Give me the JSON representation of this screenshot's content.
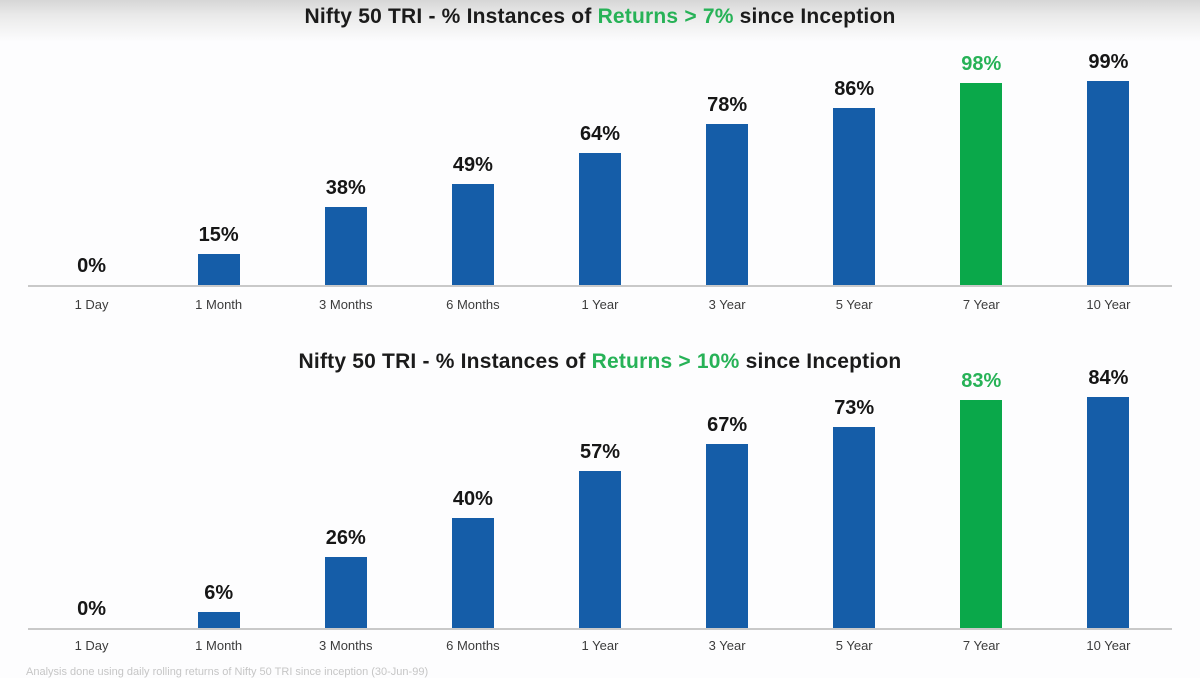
{
  "colors": {
    "bar_blue": "#155da8",
    "bar_green": "#0aa84a",
    "text_green": "#27b257",
    "text_black": "#161616",
    "axis_line": "#c9c9c9",
    "category_text": "#3c3c3c",
    "footnote_text": "#c6c6c6"
  },
  "chart_data": [
    {
      "type": "bar",
      "title": {
        "prefix": "Nifty 50 TRI - % Instances of ",
        "highlight": "Returns > 7%",
        "suffix": " since Inception"
      },
      "categories": [
        "1 Day",
        "1 Month",
        "3 Months",
        "6 Months",
        "1 Year",
        "3 Year",
        "5 Year",
        "7 Year",
        "10 Year"
      ],
      "values": [
        0,
        15,
        38,
        49,
        64,
        78,
        86,
        98,
        99
      ],
      "value_labels": [
        "0%",
        "15%",
        "38%",
        "49%",
        "64%",
        "78%",
        "86%",
        "98%",
        "99%"
      ],
      "highlight_index": 7,
      "ylim": [
        0,
        100
      ],
      "grid": false,
      "legend": "none",
      "points": [
        {
          "category": "1 Day",
          "value": 0,
          "label": "0%",
          "bar_color": "#155da8",
          "label_color": "#161616"
        },
        {
          "category": "1 Month",
          "value": 15,
          "label": "15%",
          "bar_color": "#155da8",
          "label_color": "#161616"
        },
        {
          "category": "3 Months",
          "value": 38,
          "label": "38%",
          "bar_color": "#155da8",
          "label_color": "#161616"
        },
        {
          "category": "6 Months",
          "value": 49,
          "label": "49%",
          "bar_color": "#155da8",
          "label_color": "#161616"
        },
        {
          "category": "1 Year",
          "value": 64,
          "label": "64%",
          "bar_color": "#155da8",
          "label_color": "#161616"
        },
        {
          "category": "3 Year",
          "value": 78,
          "label": "78%",
          "bar_color": "#155da8",
          "label_color": "#161616"
        },
        {
          "category": "5 Year",
          "value": 86,
          "label": "86%",
          "bar_color": "#155da8",
          "label_color": "#161616"
        },
        {
          "category": "7 Year",
          "value": 98,
          "label": "98%",
          "bar_color": "#0aa84a",
          "label_color": "#27b257"
        },
        {
          "category": "10 Year",
          "value": 99,
          "label": "99%",
          "bar_color": "#155da8",
          "label_color": "#161616"
        }
      ]
    },
    {
      "type": "bar",
      "title": {
        "prefix": "Nifty 50 TRI - % Instances of ",
        "highlight": "Returns > 10%",
        "suffix": " since Inception"
      },
      "categories": [
        "1 Day",
        "1 Month",
        "3 Months",
        "6 Months",
        "1 Year",
        "3 Year",
        "5 Year",
        "7 Year",
        "10 Year"
      ],
      "values": [
        0,
        6,
        26,
        40,
        57,
        67,
        73,
        83,
        84
      ],
      "value_labels": [
        "0%",
        "6%",
        "26%",
        "40%",
        "57%",
        "67%",
        "73%",
        "83%",
        "84%"
      ],
      "highlight_index": 7,
      "ylim": [
        0,
        100
      ],
      "grid": false,
      "legend": "none",
      "points": [
        {
          "category": "1 Day",
          "value": 0,
          "label": "0%",
          "bar_color": "#155da8",
          "label_color": "#161616"
        },
        {
          "category": "1 Month",
          "value": 6,
          "label": "6%",
          "bar_color": "#155da8",
          "label_color": "#161616"
        },
        {
          "category": "3 Months",
          "value": 26,
          "label": "26%",
          "bar_color": "#155da8",
          "label_color": "#161616"
        },
        {
          "category": "6 Months",
          "value": 40,
          "label": "40%",
          "bar_color": "#155da8",
          "label_color": "#161616"
        },
        {
          "category": "1 Year",
          "value": 57,
          "label": "57%",
          "bar_color": "#155da8",
          "label_color": "#161616"
        },
        {
          "category": "3 Year",
          "value": 67,
          "label": "67%",
          "bar_color": "#155da8",
          "label_color": "#161616"
        },
        {
          "category": "5 Year",
          "value": 73,
          "label": "73%",
          "bar_color": "#155da8",
          "label_color": "#161616"
        },
        {
          "category": "7 Year",
          "value": 83,
          "label": "83%",
          "bar_color": "#0aa84a",
          "label_color": "#27b257"
        },
        {
          "category": "10 Year",
          "value": 84,
          "label": "84%",
          "bar_color": "#155da8",
          "label_color": "#161616"
        }
      ]
    }
  ],
  "footnote": {
    "text": "Analysis done using daily rolling returns of Nifty 50 TRI since inception (30-Jun-99)"
  }
}
